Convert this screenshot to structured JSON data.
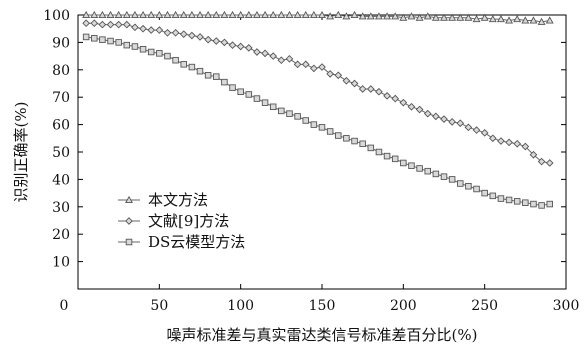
{
  "chart_data": {
    "type": "line",
    "title": "",
    "xlabel": "噪声标准差与真实雷达类信号标准差百分比(%)",
    "ylabel": "识别正确率(%)",
    "xlim": [
      0,
      300
    ],
    "ylim": [
      0,
      100
    ],
    "xticks": [
      0,
      50,
      100,
      150,
      200,
      250,
      300
    ],
    "yticks": [
      10,
      20,
      30,
      40,
      50,
      60,
      70,
      80,
      90,
      100
    ],
    "grid": false,
    "legend_position": "bottom-left",
    "series": [
      {
        "name": "本文方法",
        "marker": "triangle",
        "x": [
          5,
          10,
          15,
          20,
          25,
          30,
          35,
          40,
          45,
          50,
          55,
          60,
          65,
          70,
          75,
          80,
          85,
          90,
          95,
          100,
          105,
          110,
          115,
          120,
          125,
          130,
          135,
          140,
          145,
          150,
          155,
          160,
          165,
          170,
          175,
          180,
          185,
          190,
          195,
          200,
          205,
          210,
          215,
          220,
          225,
          230,
          235,
          240,
          245,
          250,
          255,
          260,
          265,
          270,
          275,
          280,
          285,
          290
        ],
        "y": [
          100,
          100,
          100,
          100,
          100,
          100,
          100,
          100,
          100,
          100,
          100,
          100,
          100,
          100,
          100,
          100,
          100,
          100,
          100,
          100,
          100,
          100,
          100,
          100,
          100,
          100,
          100,
          100,
          100,
          100,
          99.5,
          100,
          99.5,
          100,
          99.5,
          99.5,
          99.5,
          99.5,
          99.5,
          99,
          99.5,
          99,
          99.5,
          99,
          99,
          99,
          99,
          99,
          98.5,
          99,
          98.5,
          98.5,
          98,
          98.5,
          98,
          98,
          97.5,
          98
        ]
      },
      {
        "name": "文献[9]方法",
        "marker": "diamond",
        "x": [
          5,
          10,
          15,
          20,
          25,
          30,
          35,
          40,
          45,
          50,
          55,
          60,
          65,
          70,
          75,
          80,
          85,
          90,
          95,
          100,
          105,
          110,
          115,
          120,
          125,
          130,
          135,
          140,
          145,
          150,
          155,
          160,
          165,
          170,
          175,
          180,
          185,
          190,
          195,
          200,
          205,
          210,
          215,
          220,
          225,
          230,
          235,
          240,
          245,
          250,
          255,
          260,
          265,
          270,
          275,
          280,
          285,
          290
        ],
        "y": [
          97,
          97,
          96.5,
          96.5,
          96.5,
          96.5,
          95.5,
          95,
          94.5,
          94.5,
          93.5,
          93.5,
          93,
          92.5,
          92,
          91,
          90.5,
          90,
          89,
          88.5,
          88,
          86.5,
          86,
          85,
          83.5,
          84,
          82,
          82,
          80.5,
          81,
          78.5,
          78,
          76,
          75,
          73,
          73,
          72,
          70.5,
          69.5,
          68,
          66.5,
          65.5,
          64,
          63,
          62,
          61,
          60.5,
          59,
          58,
          57,
          55,
          54,
          53.5,
          53,
          52,
          49,
          46.5,
          46
        ]
      },
      {
        "name": "DS云模型方法",
        "marker": "square",
        "x": [
          5,
          10,
          15,
          20,
          25,
          30,
          35,
          40,
          45,
          50,
          55,
          60,
          65,
          70,
          75,
          80,
          85,
          90,
          95,
          100,
          105,
          110,
          115,
          120,
          125,
          130,
          135,
          140,
          145,
          150,
          155,
          160,
          165,
          170,
          175,
          180,
          185,
          190,
          195,
          200,
          205,
          210,
          215,
          220,
          225,
          230,
          235,
          240,
          245,
          250,
          255,
          260,
          265,
          270,
          275,
          280,
          285,
          290
        ],
        "y": [
          92,
          91.5,
          91,
          90.5,
          90,
          89,
          88.5,
          87.5,
          86.5,
          86,
          85,
          83.5,
          82,
          81,
          79.5,
          78,
          77.5,
          75.5,
          73.5,
          72,
          71,
          69.5,
          68,
          66.5,
          65,
          64,
          63,
          61.5,
          60,
          59,
          57.5,
          56,
          55,
          54,
          53,
          51.5,
          50,
          48.5,
          47.5,
          46,
          45,
          44,
          43,
          42,
          41,
          40,
          38.5,
          37.5,
          36.5,
          35,
          34,
          33,
          32.5,
          32,
          31.5,
          31,
          30.5,
          31
        ]
      }
    ]
  }
}
